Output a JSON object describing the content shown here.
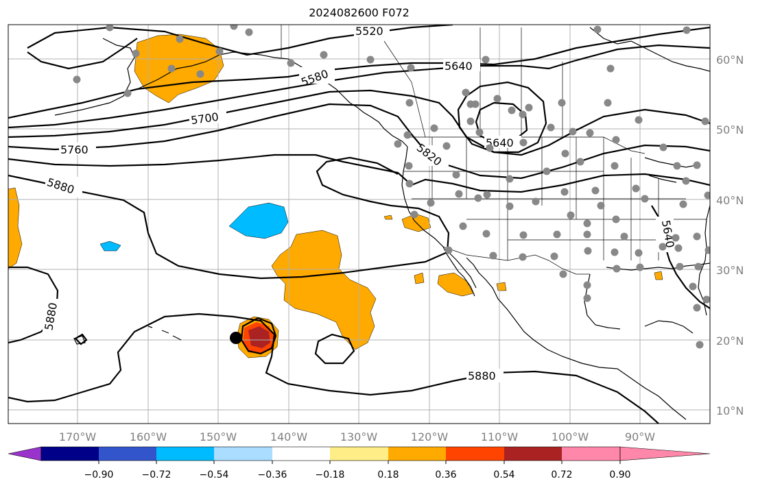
{
  "title": "2024082600 F072",
  "lat_labels": [
    "60°N",
    "50°N",
    "40°N",
    "30°N",
    "20°N",
    "10°N"
  ],
  "lon_labels": [
    "170°W",
    "160°W",
    "150°W",
    "140°W",
    "130°W",
    "120°W",
    "110°W",
    "100°W",
    "90°W"
  ],
  "contour_labels": [
    "5520",
    "5580",
    "5640",
    "5700",
    "5640",
    "5760",
    "5820",
    "5880",
    "5880",
    "5880",
    "5640"
  ],
  "colorbar": {
    "ticks": [
      "−0.90",
      "−0.72",
      "−0.54",
      "−0.36",
      "−0.18",
      "0.18",
      "0.36",
      "0.54",
      "0.72",
      "0.90"
    ],
    "colors": [
      "#9933cc",
      "#000088",
      "#3355cc",
      "#00bbff",
      "#aaddff",
      "#ffffff",
      "#ffee88",
      "#ffaa00",
      "#ff4400",
      "#aa2222",
      "#ff88aa"
    ]
  }
}
